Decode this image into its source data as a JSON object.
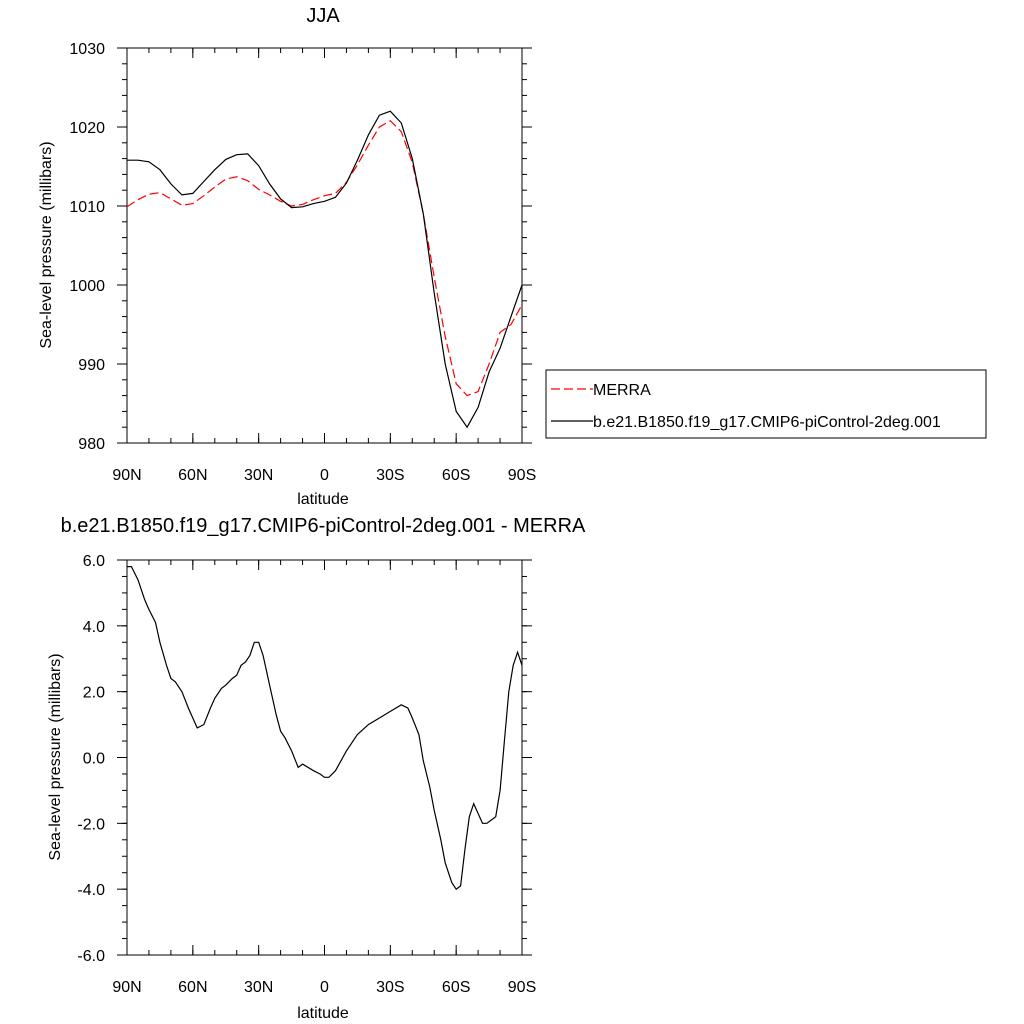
{
  "chart_data": [
    {
      "type": "line",
      "title": "JJA",
      "xlabel": "latitude",
      "ylabel": "Sea-level pressure (millibars)",
      "xlim": [
        90,
        -90
      ],
      "ylim": [
        980,
        1030
      ],
      "x_ticks": [
        90,
        60,
        30,
        0,
        -30,
        -60,
        -90
      ],
      "x_tick_labels": [
        "90N",
        "60N",
        "30N",
        "0",
        "30S",
        "60S",
        "90S"
      ],
      "y_ticks": [
        980,
        990,
        1000,
        1010,
        1020,
        1030
      ],
      "y_tick_labels": [
        "980",
        "990",
        "1000",
        "1010",
        "1020",
        "1030"
      ],
      "legend_position": "right",
      "series": [
        {
          "name": "MERRA",
          "color": "#ff0000",
          "dashed": true,
          "x": [
            90,
            85,
            80,
            75,
            70,
            65,
            60,
            55,
            50,
            45,
            40,
            35,
            30,
            25,
            20,
            15,
            10,
            5,
            0,
            -5,
            -10,
            -15,
            -20,
            -25,
            -30,
            -35,
            -40,
            -45,
            -50,
            -55,
            -60,
            -65,
            -70,
            -75,
            -80,
            -85,
            -90
          ],
          "y": [
            1009.9,
            1010.8,
            1011.5,
            1011.7,
            1010.9,
            1010.1,
            1010.3,
            1011.3,
            1012.4,
            1013.4,
            1013.7,
            1013.2,
            1012.1,
            1011.4,
            1010.6,
            1010.0,
            1010.2,
            1010.8,
            1011.3,
            1011.6,
            1013.0,
            1015.2,
            1017.7,
            1020.0,
            1020.8,
            1019.4,
            1015.5,
            1009.0,
            1001.0,
            993.5,
            987.5,
            986.0,
            986.5,
            990.0,
            994.0,
            995.0,
            997.5
          ]
        },
        {
          "name": "b.e21.B1850.f19_g17.CMIP6-piControl-2deg.001",
          "color": "#000000",
          "dashed": false,
          "x": [
            90,
            85,
            80,
            75,
            70,
            65,
            60,
            55,
            50,
            45,
            40,
            35,
            30,
            25,
            20,
            15,
            10,
            5,
            0,
            -5,
            -10,
            -15,
            -20,
            -25,
            -30,
            -35,
            -40,
            -45,
            -50,
            -55,
            -60,
            -65,
            -70,
            -75,
            -80,
            -85,
            -90
          ],
          "y": [
            1015.8,
            1015.8,
            1015.6,
            1014.6,
            1012.8,
            1011.4,
            1011.6,
            1013.1,
            1014.6,
            1015.9,
            1016.5,
            1016.6,
            1015.1,
            1012.8,
            1010.9,
            1009.8,
            1009.9,
            1010.3,
            1010.6,
            1011.1,
            1012.9,
            1015.8,
            1019.0,
            1021.5,
            1022.0,
            1020.5,
            1016.0,
            1009.0,
            999.0,
            990.0,
            984.0,
            982.0,
            984.5,
            989.0,
            992.0,
            996.0,
            1000.0
          ]
        }
      ]
    },
    {
      "type": "line",
      "title": "b.e21.B1850.f19_g17.CMIP6-piControl-2deg.001 - MERRA",
      "xlabel": "latitude",
      "ylabel": "Sea-level pressure (millibars)",
      "xlim": [
        90,
        -90
      ],
      "ylim": [
        -6.0,
        6.0
      ],
      "x_ticks": [
        90,
        60,
        30,
        0,
        -30,
        -60,
        -90
      ],
      "x_tick_labels": [
        "90N",
        "60N",
        "30N",
        "0",
        "30S",
        "60S",
        "90S"
      ],
      "y_ticks": [
        -6.0,
        -4.0,
        -2.0,
        0.0,
        2.0,
        4.0,
        6.0
      ],
      "y_tick_labels": [
        "-6.0",
        "-4.0",
        "-2.0",
        "0.0",
        "2.0",
        "4.0",
        "6.0"
      ],
      "series": [
        {
          "color": "#000000",
          "dashed": false,
          "x": [
            90,
            88,
            85,
            82,
            80,
            77,
            75,
            72,
            70,
            68,
            65,
            62,
            60,
            58,
            55,
            52,
            50,
            47,
            45,
            42,
            40,
            38,
            36,
            34,
            32,
            30,
            28,
            25,
            22,
            20,
            18,
            15,
            12,
            10,
            5,
            2,
            0,
            -2,
            -5,
            -10,
            -15,
            -20,
            -25,
            -30,
            -35,
            -38,
            -40,
            -43,
            -45,
            -48,
            -50,
            -53,
            -55,
            -58,
            -60,
            -62,
            -64,
            -66,
            -68,
            -70,
            -72,
            -74,
            -76,
            -78,
            -80,
            -82,
            -84,
            -86,
            -88,
            -90
          ],
          "y": [
            5.8,
            5.8,
            5.4,
            4.8,
            4.5,
            4.1,
            3.5,
            2.8,
            2.4,
            2.3,
            2.0,
            1.5,
            1.2,
            0.9,
            1.0,
            1.5,
            1.8,
            2.1,
            2.2,
            2.4,
            2.5,
            2.8,
            2.9,
            3.1,
            3.5,
            3.5,
            3.1,
            2.2,
            1.3,
            0.8,
            0.6,
            0.2,
            -0.3,
            -0.2,
            -0.4,
            -0.5,
            -0.6,
            -0.6,
            -0.4,
            0.2,
            0.7,
            1.0,
            1.2,
            1.4,
            1.6,
            1.5,
            1.2,
            0.7,
            -0.1,
            -0.9,
            -1.6,
            -2.5,
            -3.2,
            -3.8,
            -4.0,
            -3.9,
            -2.8,
            -1.8,
            -1.4,
            -1.7,
            -2.0,
            -2.0,
            -1.9,
            -1.8,
            -1.0,
            0.5,
            2.0,
            2.8,
            3.2,
            2.8
          ]
        }
      ]
    }
  ]
}
